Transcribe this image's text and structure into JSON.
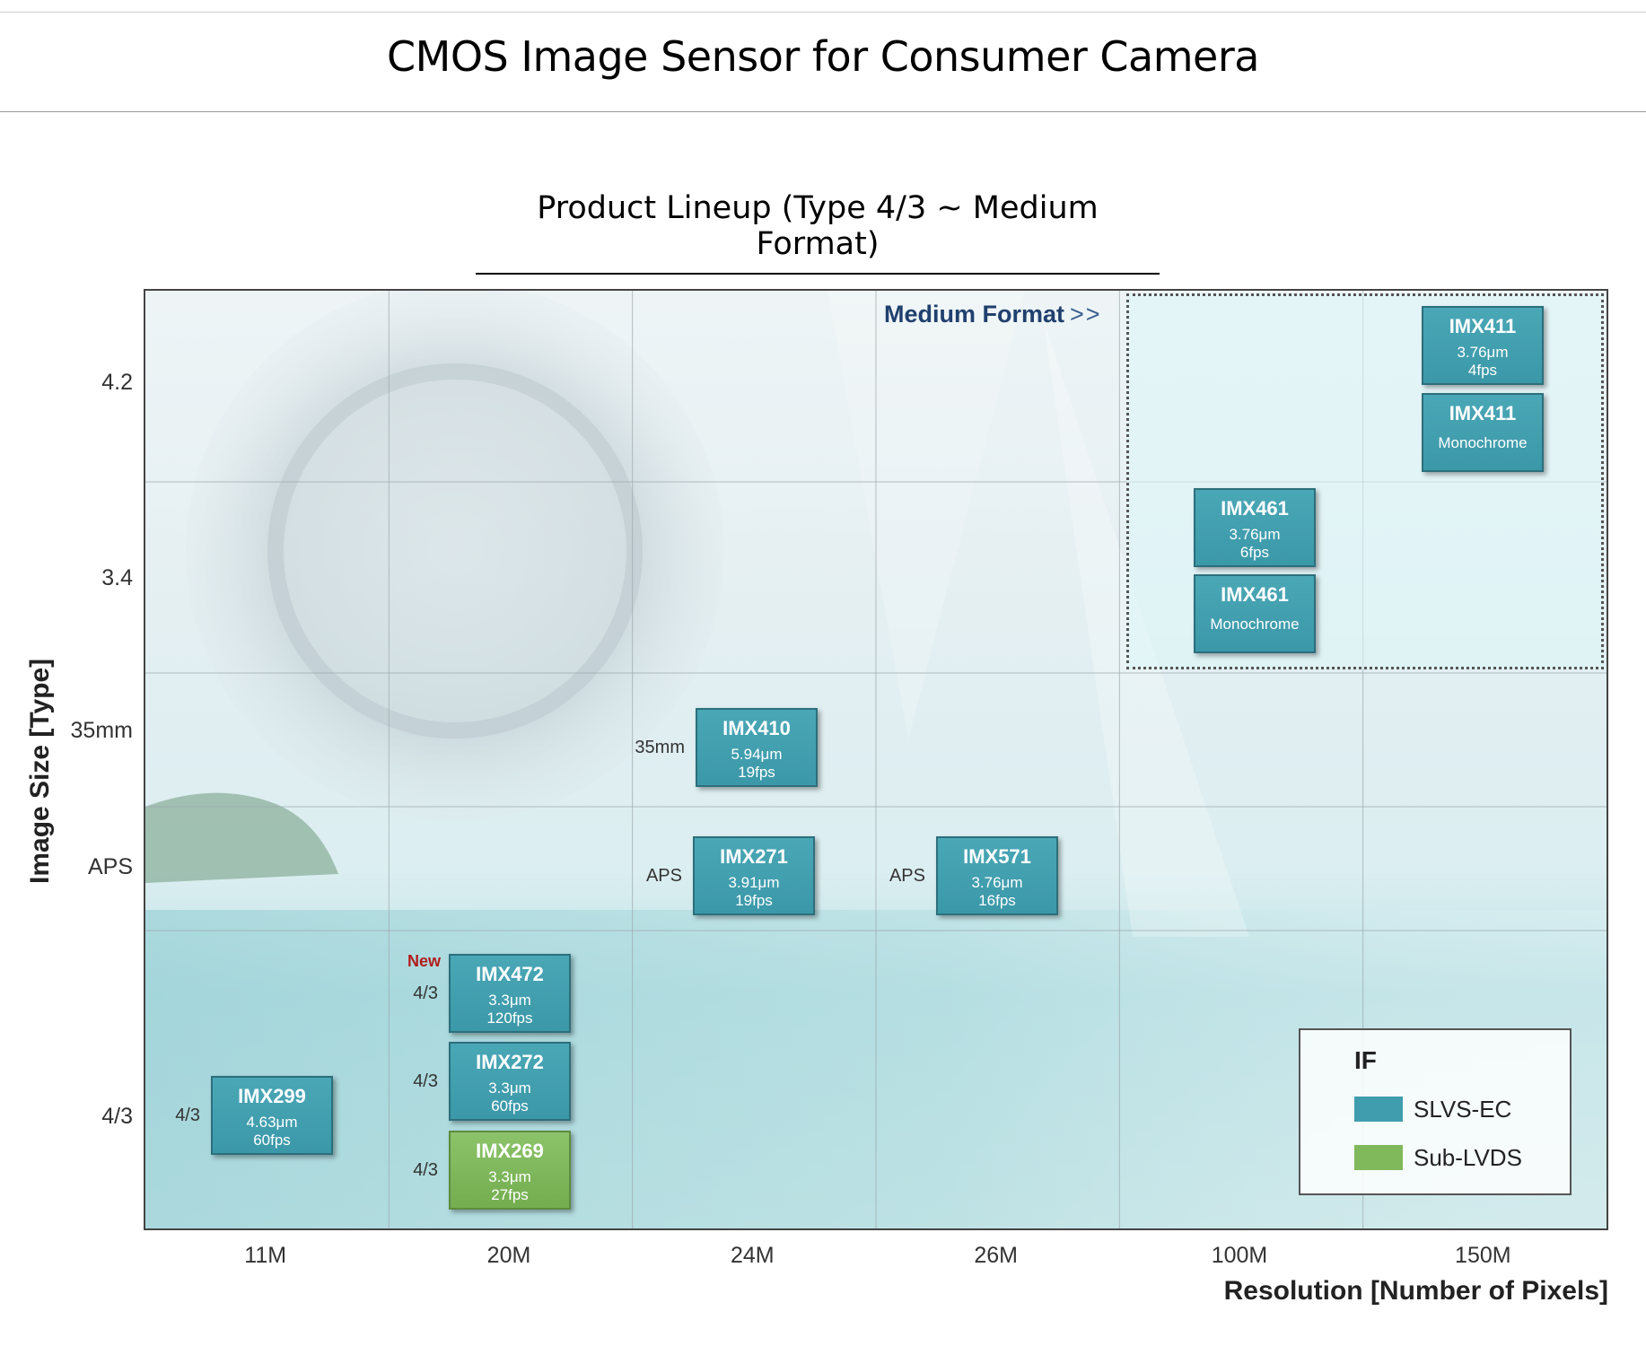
{
  "header": {
    "title": "CMOS Image Sensor for Consumer Camera",
    "subtitle": "Product Lineup (Type 4/3 ~ Medium Format)"
  },
  "colors": {
    "slvs_ec": "#3f9dad",
    "sub_lvds": "#80b95b",
    "new_label": "#b31b1b",
    "medium_format_label": "#20406e"
  },
  "chart_data": {
    "type": "table",
    "ylabel": "Image Size [Type]",
    "xlabel": "Resolution  [Number of Pixels]",
    "y_ticks": [
      "4.2",
      "3.4",
      "35mm",
      "APS",
      "4/3"
    ],
    "x_ticks": [
      "11M",
      "20M",
      "24M",
      "26M",
      "100M",
      "150M"
    ],
    "grid": true,
    "region_label": "Medium Format",
    "region_arrow": ">>",
    "legend": {
      "title": "IF",
      "position": "bottom-right",
      "entries": [
        {
          "label": "SLVS-EC",
          "interface": "slvs_ec"
        },
        {
          "label": "Sub-LVDS",
          "interface": "sub_lvds"
        }
      ]
    },
    "products": [
      {
        "name": "IMX411",
        "line2": "3.76μm",
        "line3": "4fps",
        "resolution": "150M",
        "size": "4.2",
        "interface": "slvs_ec"
      },
      {
        "name": "IMX411",
        "line2": "Monochrome",
        "resolution": "150M",
        "size": "4.2",
        "interface": "slvs_ec"
      },
      {
        "name": "IMX461",
        "line2": "3.76μm",
        "line3": "6fps",
        "resolution": "100M",
        "size": "3.4",
        "interface": "slvs_ec"
      },
      {
        "name": "IMX461",
        "line2": "Monochrome",
        "resolution": "100M",
        "size": "3.4",
        "interface": "slvs_ec"
      },
      {
        "name": "IMX410",
        "line2": "5.94μm",
        "line3": "19fps",
        "resolution": "24M",
        "size": "35mm",
        "interface": "slvs_ec",
        "side_label": "35mm"
      },
      {
        "name": "IMX271",
        "line2": "3.91μm",
        "line3": "19fps",
        "resolution": "24M",
        "size": "APS",
        "interface": "slvs_ec",
        "side_label": "APS"
      },
      {
        "name": "IMX571",
        "line2": "3.76μm",
        "line3": "16fps",
        "resolution": "26M",
        "size": "APS",
        "interface": "slvs_ec",
        "side_label": "APS"
      },
      {
        "name": "IMX472",
        "line2": "3.3μm",
        "line3": "120fps",
        "resolution": "20M",
        "size": "4/3",
        "interface": "slvs_ec",
        "side_label": "4/3",
        "badge": "New"
      },
      {
        "name": "IMX272",
        "line2": "3.3μm",
        "line3": "60fps",
        "resolution": "20M",
        "size": "4/3",
        "interface": "slvs_ec",
        "side_label": "4/3"
      },
      {
        "name": "IMX269",
        "line2": "3.3μm",
        "line3": "27fps",
        "resolution": "20M",
        "size": "4/3",
        "interface": "sub_lvds",
        "side_label": "4/3"
      },
      {
        "name": "IMX299",
        "line2": "4.63μm",
        "line3": "60fps",
        "resolution": "11M",
        "size": "4/3",
        "interface": "slvs_ec",
        "side_label": "4/3"
      }
    ]
  }
}
